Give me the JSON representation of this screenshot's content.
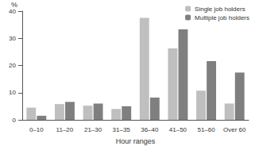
{
  "chart_data": {
    "type": "bar",
    "xlabel": "Hour ranges",
    "ylabel": "%",
    "categories": [
      "0–10",
      "11–20",
      "21–30",
      "31–35",
      "36–40",
      "41–50",
      "51–60",
      "Over 60"
    ],
    "series": [
      {
        "name": "Single job holders",
        "color": "#bfbfbf",
        "values": [
          4.5,
          5.8,
          5.2,
          4.0,
          37.5,
          26.3,
          10.7,
          6.0
        ]
      },
      {
        "name": "Multiple job holders",
        "color": "#7f7f7f",
        "values": [
          1.5,
          6.6,
          6.0,
          5.0,
          8.2,
          33.3,
          21.6,
          17.4
        ]
      }
    ],
    "ylim": [
      0,
      40
    ],
    "yticks": [
      0,
      10,
      20,
      30,
      40
    ],
    "grid": false,
    "legend": "upper right"
  }
}
